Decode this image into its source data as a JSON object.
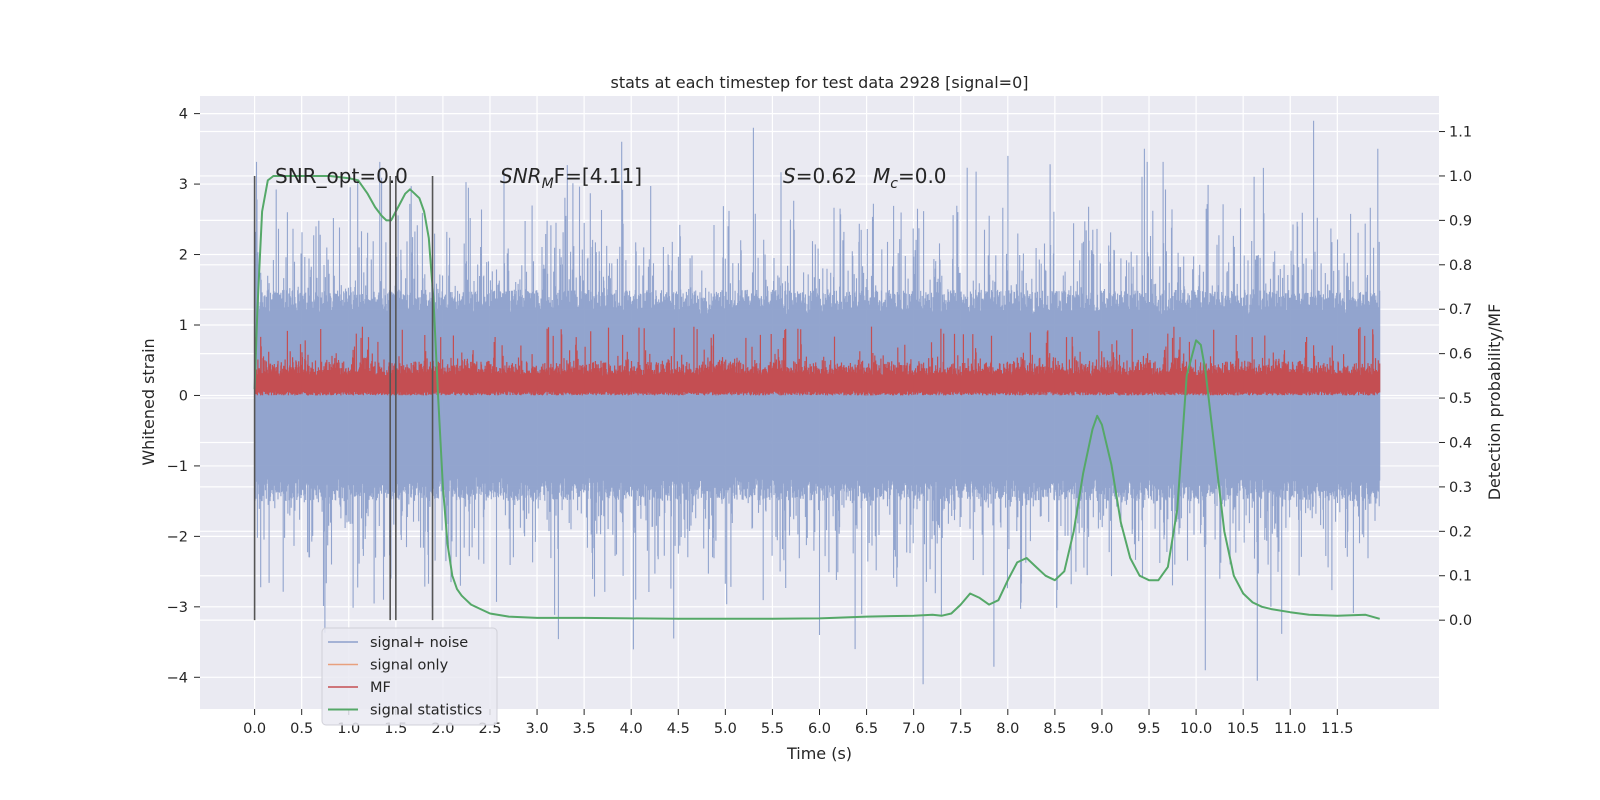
{
  "chart_data": {
    "type": "line",
    "title": "stats at each timestep for test data 2928 [signal=0]",
    "xlabel": "Time (s)",
    "ylabel_left": "Whitened strain",
    "ylabel_right": "Detection probability/MF",
    "xlim": [
      -0.58,
      12.58
    ],
    "ylim_left": [
      -4.45,
      4.25
    ],
    "ylim_right": [
      -0.2,
      1.18
    ],
    "x_ticks": [
      "0.0",
      "0.5",
      "1.0",
      "1.5",
      "2.0",
      "2.5",
      "3.0",
      "3.5",
      "4.0",
      "4.5",
      "5.0",
      "5.5",
      "6.0",
      "6.5",
      "7.0",
      "7.5",
      "8.0",
      "8.5",
      "9.0",
      "9.5",
      "10.0",
      "10.5",
      "11.0",
      "11.5"
    ],
    "y_ticks_left": [
      "−4",
      "−3",
      "−2",
      "−1",
      "0",
      "1",
      "2",
      "3",
      "4"
    ],
    "y_ticks_right": [
      "0.0",
      "0.1",
      "0.2",
      "0.3",
      "0.4",
      "0.5",
      "0.6",
      "0.7",
      "0.8",
      "0.9",
      "1.0",
      "1.1"
    ],
    "grid": true,
    "legend_position": "lower-left",
    "annotations": {
      "snr_opt": "SNR_opt=0.0",
      "snr_mf_main": "SNR",
      "snr_mf_sub": "M",
      "snr_mf_rest": "F=[4.11]",
      "s_label": "S",
      "s_value": "=0.62",
      "mc_main": "M",
      "mc_sub": "c",
      "mc_value": "=0.0"
    },
    "vertical_markers_x": [
      0.0,
      1.44,
      1.5,
      1.89
    ],
    "series": [
      {
        "name": "signal+ noise",
        "color": "#8da0cb",
        "axis": "left",
        "envelope": {
          "x_start": 0.0,
          "x_end": 11.95,
          "typical_abs": 1.2,
          "max_abs": 3.9
        },
        "peaks": [
          [
            0.35,
            2.6
          ],
          [
            0.65,
            2.4
          ],
          [
            1.37,
            -2.9
          ],
          [
            1.45,
            -2.6
          ],
          [
            2.65,
            3.2
          ],
          [
            3.9,
            3.6
          ],
          [
            4.45,
            -3.45
          ],
          [
            5.3,
            3.8
          ],
          [
            6.0,
            -3.4
          ],
          [
            6.38,
            -3.6
          ],
          [
            7.1,
            -4.1
          ],
          [
            7.85,
            -3.85
          ],
          [
            8.0,
            3.4
          ],
          [
            9.45,
            3.5
          ],
          [
            10.1,
            -3.9
          ],
          [
            10.65,
            -4.05
          ],
          [
            11.25,
            3.9
          ],
          [
            11.93,
            3.5
          ]
        ]
      },
      {
        "name": "signal only",
        "color": "#e8a07e",
        "axis": "left",
        "values": []
      },
      {
        "name": "MF",
        "color": "#c44e52",
        "axis": "left",
        "envelope": {
          "x_start": 0.0,
          "x_end": 11.95,
          "low": 0.0,
          "typical_high": 0.45,
          "max_high": 0.98
        }
      },
      {
        "name": "signal statistics",
        "color": "#55a868",
        "axis": "right",
        "x": [
          0.0,
          0.03,
          0.08,
          0.14,
          0.2,
          0.3,
          0.45,
          0.6,
          0.8,
          1.0,
          1.1,
          1.2,
          1.28,
          1.35,
          1.4,
          1.45,
          1.5,
          1.55,
          1.6,
          1.65,
          1.7,
          1.75,
          1.8,
          1.85,
          1.9,
          1.95,
          2.0,
          2.05,
          2.1,
          2.15,
          2.2,
          2.25,
          2.3,
          2.4,
          2.5,
          2.7,
          3.0,
          3.5,
          4.0,
          4.5,
          5.0,
          5.5,
          6.0,
          6.5,
          7.0,
          7.2,
          7.3,
          7.4,
          7.5,
          7.6,
          7.7,
          7.8,
          7.9,
          8.0,
          8.1,
          8.2,
          8.3,
          8.4,
          8.5,
          8.6,
          8.7,
          8.8,
          8.9,
          8.95,
          9.0,
          9.1,
          9.2,
          9.3,
          9.4,
          9.5,
          9.6,
          9.7,
          9.8,
          9.85,
          9.9,
          10.0,
          10.05,
          10.1,
          10.2,
          10.3,
          10.4,
          10.5,
          10.6,
          10.7,
          10.8,
          11.0,
          11.2,
          11.5,
          11.8,
          11.95
        ],
        "values": [
          0.52,
          0.7,
          0.92,
          0.99,
          1.0,
          1.0,
          1.0,
          1.0,
          1.0,
          0.995,
          0.99,
          0.96,
          0.93,
          0.91,
          0.9,
          0.9,
          0.92,
          0.94,
          0.96,
          0.97,
          0.96,
          0.95,
          0.92,
          0.86,
          0.72,
          0.5,
          0.3,
          0.17,
          0.1,
          0.07,
          0.055,
          0.045,
          0.035,
          0.025,
          0.015,
          0.008,
          0.005,
          0.005,
          0.004,
          0.003,
          0.003,
          0.003,
          0.004,
          0.008,
          0.01,
          0.012,
          0.01,
          0.015,
          0.035,
          0.06,
          0.05,
          0.035,
          0.045,
          0.09,
          0.13,
          0.14,
          0.12,
          0.1,
          0.09,
          0.11,
          0.2,
          0.33,
          0.43,
          0.46,
          0.44,
          0.35,
          0.22,
          0.14,
          0.1,
          0.09,
          0.09,
          0.12,
          0.25,
          0.4,
          0.55,
          0.63,
          0.62,
          0.56,
          0.38,
          0.2,
          0.1,
          0.06,
          0.04,
          0.03,
          0.025,
          0.018,
          0.012,
          0.01,
          0.012,
          0.003
        ]
      }
    ]
  }
}
